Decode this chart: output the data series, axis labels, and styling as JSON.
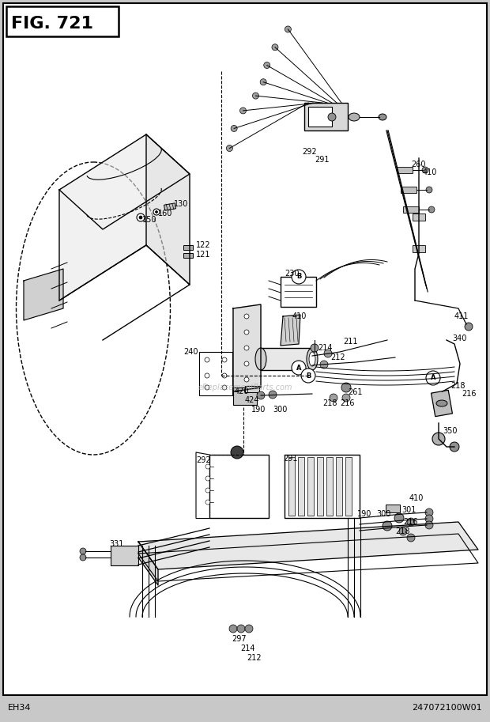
{
  "title": "FIG. 721",
  "bottom_left": "EH34",
  "bottom_right": "247072100W01",
  "bg_color": "#c8c8c8",
  "border_color": "#000000",
  "fig_width": 6.2,
  "fig_height": 9.13,
  "watermark": "eReplacementParts.com"
}
